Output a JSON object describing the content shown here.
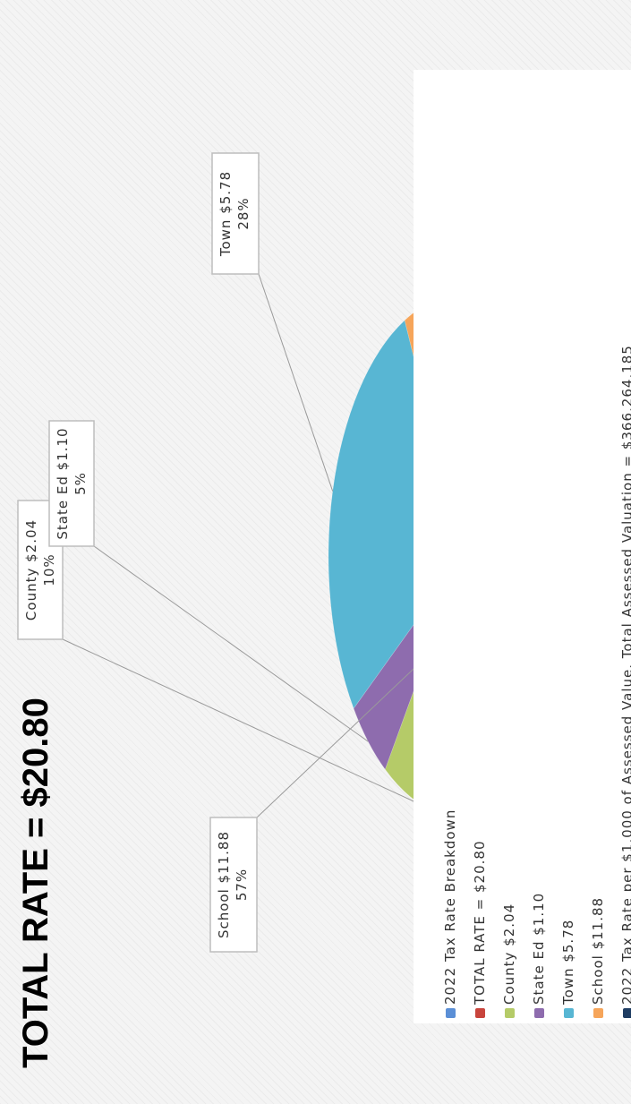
{
  "chart_data": {
    "type": "pie",
    "title": "TOTAL RATE = $20.80",
    "slices": [
      {
        "label": "County $2.04",
        "value": 2.04,
        "percent": "10%",
        "color": "#b5cb68"
      },
      {
        "label": "State Ed $1.10",
        "value": 1.1,
        "percent": "5%",
        "color": "#8e6cae"
      },
      {
        "label": "Town $5.78",
        "value": 5.78,
        "percent": "28%",
        "color": "#58b6d3"
      },
      {
        "label": "School $11.88",
        "value": 11.88,
        "percent": "57%",
        "color": "#f6a55a"
      }
    ],
    "legend": [
      {
        "label": "2022 Tax Rate Breakdown",
        "color": "#5b8fd6"
      },
      {
        "label": "TOTAL RATE = $20.80",
        "color": "#c8443c"
      },
      {
        "label": "County $2.04",
        "color": "#b5cb68"
      },
      {
        "label": "State Ed $1.10",
        "color": "#8e6cae"
      },
      {
        "label": "Town $5.78",
        "color": "#58b6d3"
      },
      {
        "label": "School $11.88",
        "color": "#f6a55a"
      },
      {
        "label": "2022 Tax Rate per $1,000 of Assessed Value.  Total Assessed Valuation = $366,264,185",
        "color": "#1f3d63"
      }
    ],
    "legend_placement": "bottom",
    "orientation": "rotated-90-ccw"
  }
}
